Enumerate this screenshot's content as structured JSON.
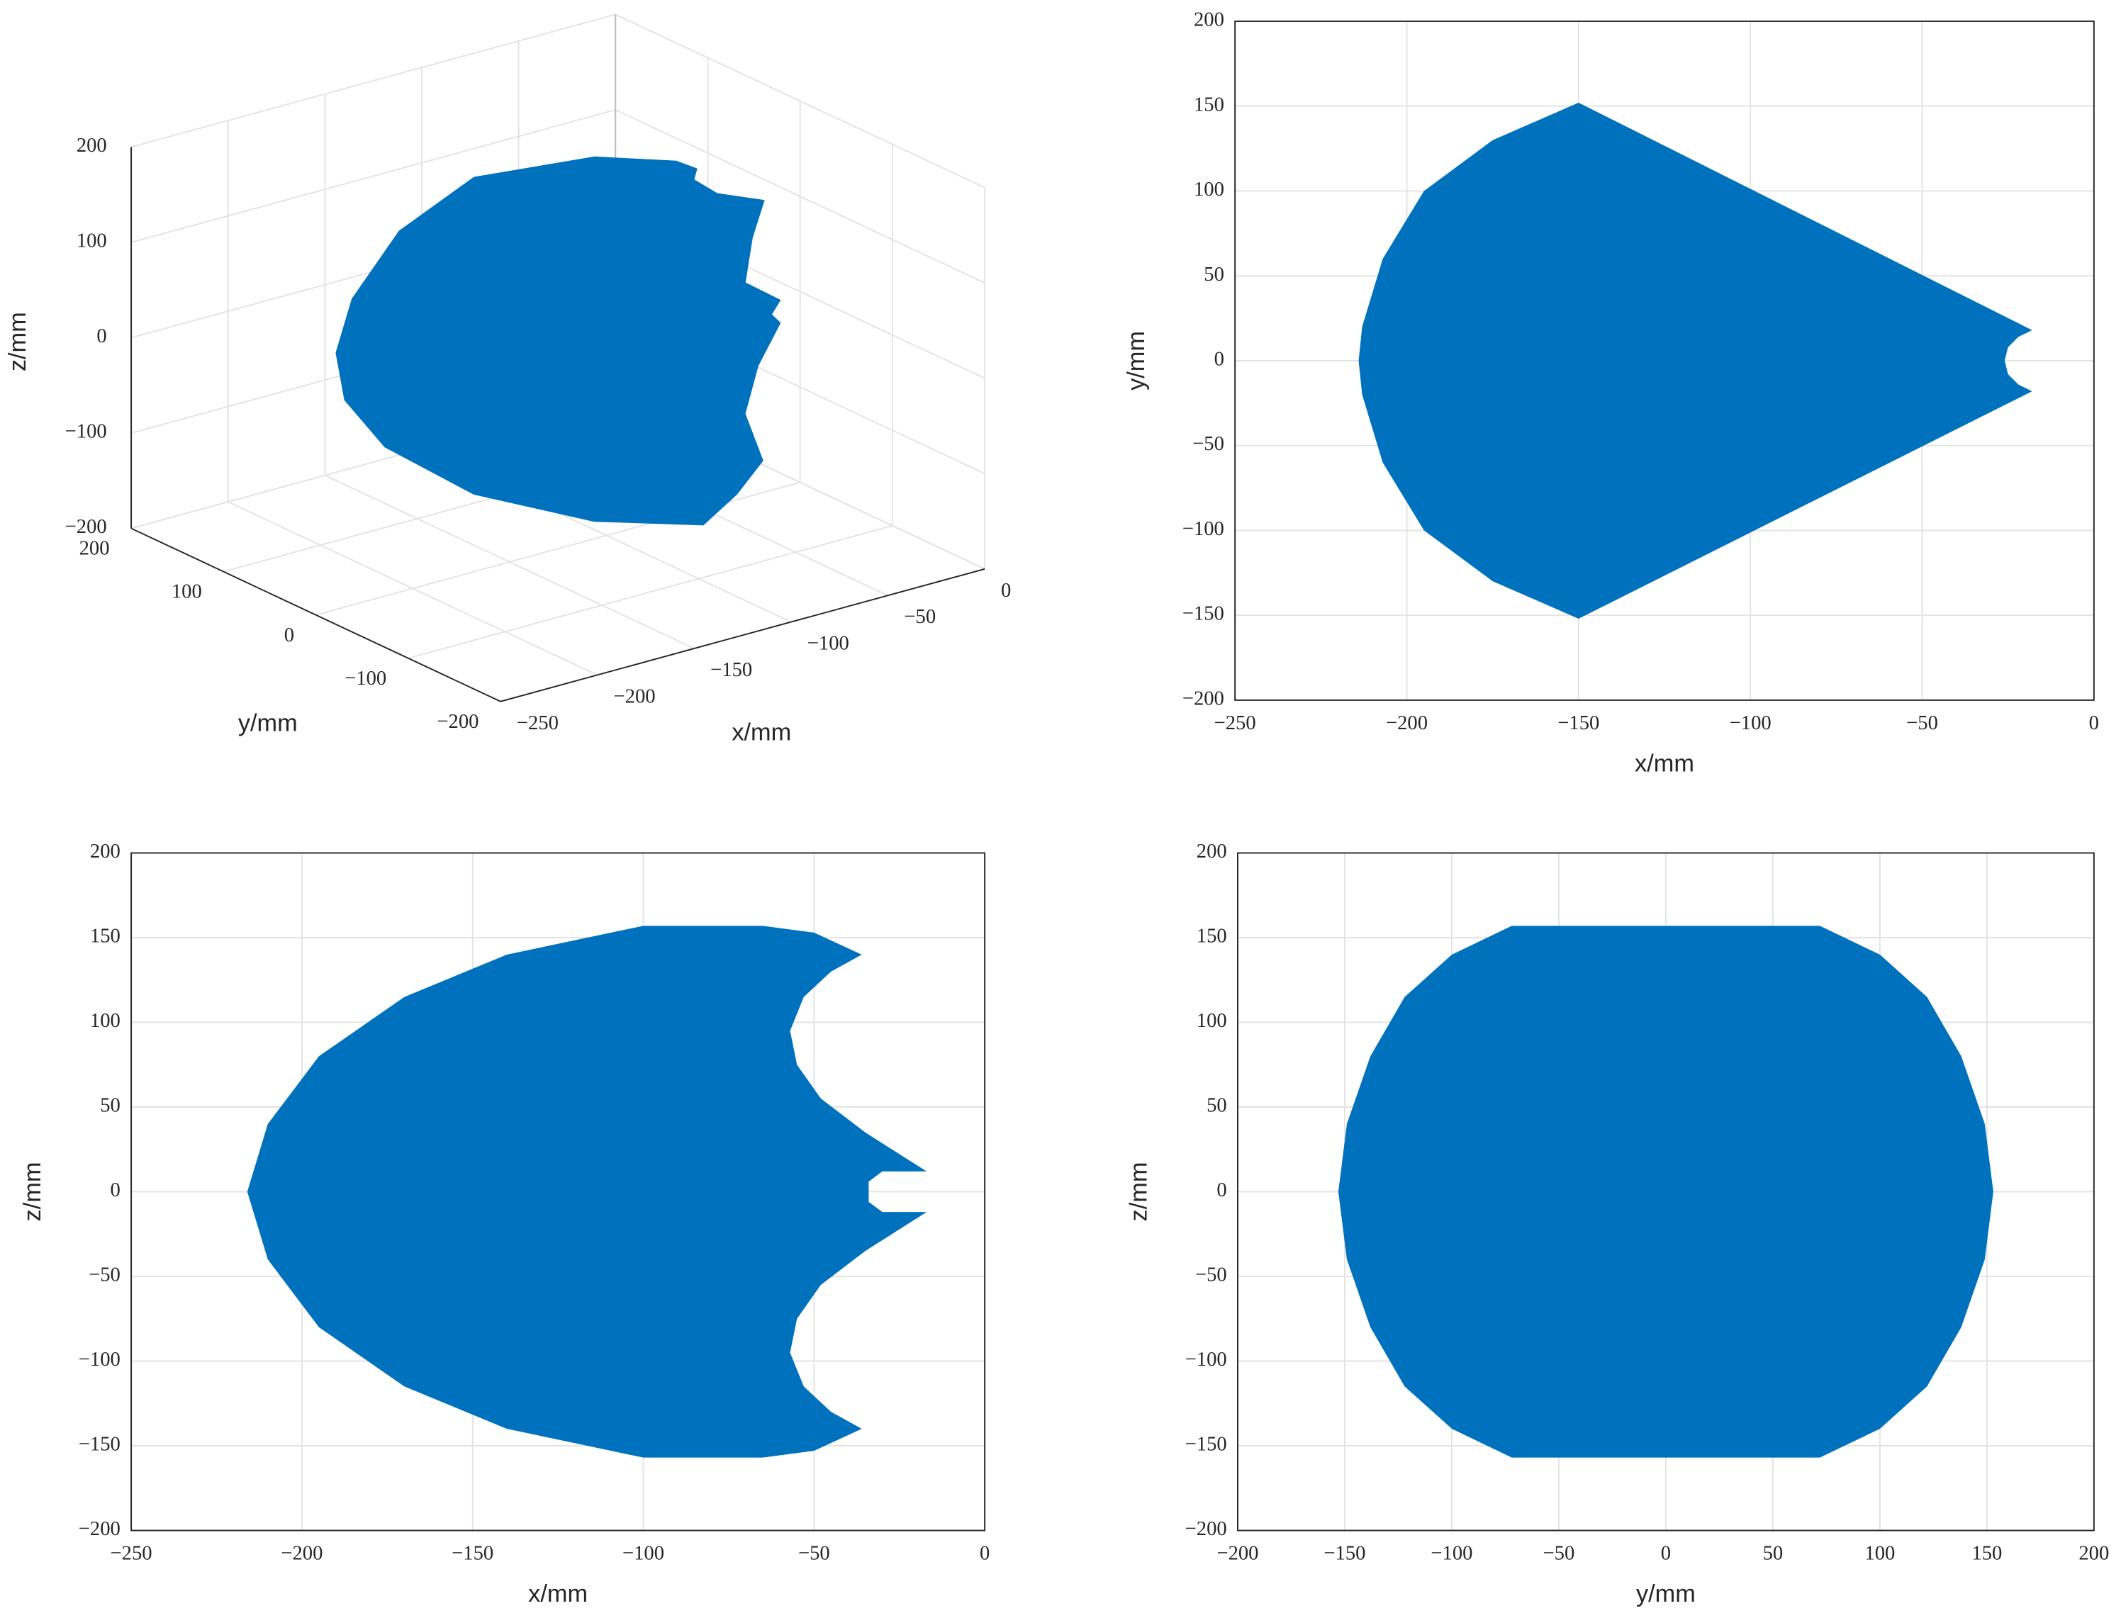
{
  "chart_data": [
    {
      "type": "area3d",
      "xlabel": "x/mm",
      "ylabel": "y/mm",
      "zlabel": "z/mm",
      "color": "#0072bd",
      "grid": true,
      "xlim": [
        -250,
        0
      ],
      "ylim": [
        -200,
        200
      ],
      "zlim": [
        -200,
        200
      ],
      "xticks": [
        {
          "value": -250,
          "label": "−250"
        },
        {
          "value": -200,
          "label": "−200"
        },
        {
          "value": -150,
          "label": "−150"
        },
        {
          "value": -100,
          "label": "−100"
        },
        {
          "value": -50,
          "label": "−50"
        },
        0
      ],
      "yticks": [
        {
          "value": -200,
          "label": "−200"
        },
        {
          "value": -100,
          "label": "−100"
        },
        0,
        100,
        200
      ],
      "zticks": [
        {
          "value": -200,
          "label": "−200"
        },
        {
          "value": -100,
          "label": "−100"
        },
        0,
        100,
        200
      ],
      "x": [
        -77,
        -52,
        -44,
        -36,
        -38,
        -34,
        -44,
        -51,
        -20,
        -25,
        -20,
        -32,
        -43,
        -40,
        -62,
        -90,
        -123,
        -148,
        -164,
        -171,
        -174,
        -171,
        -148,
        -116
      ],
      "y": [
        61,
        25,
        19,
        39,
        10,
        -33,
        -41,
        -48,
        -21,
        -22,
        -21,
        -22,
        -31,
        -44,
        -62,
        -84,
        -35,
        43,
        106,
        135,
        138,
        127,
        124,
        110
      ],
      "z": [
        157,
        155,
        145,
        120,
        120,
        130,
        100,
        60,
        12,
        0,
        -12,
        -50,
        -90,
        -135,
        -150,
        -157,
        -157,
        -150,
        -120,
        -80,
        -30,
        30,
        90,
        135
      ]
    },
    {
      "type": "area",
      "xlabel": "x/mm",
      "ylabel": "y/mm",
      "color": "#0072bd",
      "grid": true,
      "xlim": [
        -250,
        0
      ],
      "ylim": [
        -200,
        200
      ],
      "xticks": [
        {
          "value": -250,
          "label": "−250"
        },
        {
          "value": -200,
          "label": "−200"
        },
        {
          "value": -150,
          "label": "−150"
        },
        {
          "value": -100,
          "label": "−100"
        },
        {
          "value": -50,
          "label": "−50"
        },
        0
      ],
      "yticks": [
        {
          "value": -200,
          "label": "−200"
        },
        {
          "value": -150,
          "label": "−150"
        },
        {
          "value": -100,
          "label": "−100"
        },
        {
          "value": -50,
          "label": "−50"
        },
        0,
        50,
        100,
        150,
        200
      ],
      "x": [
        -150,
        -175,
        -195,
        -207,
        -213,
        -214,
        -213,
        -207,
        -195,
        -175,
        -150,
        -18,
        -22,
        -25,
        -26,
        -25,
        -22,
        -18
      ],
      "values": [
        152,
        130,
        100,
        60,
        20,
        0,
        -20,
        -60,
        -100,
        -130,
        -152,
        -18,
        -14,
        -8,
        0,
        8,
        14,
        18
      ]
    },
    {
      "type": "area",
      "xlabel": "x/mm",
      "ylabel": "z/mm",
      "color": "#0072bd",
      "grid": true,
      "xlim": [
        -250,
        0
      ],
      "ylim": [
        -200,
        200
      ],
      "xticks": [
        {
          "value": -250,
          "label": "−250"
        },
        {
          "value": -200,
          "label": "−200"
        },
        {
          "value": -150,
          "label": "−150"
        },
        {
          "value": -100,
          "label": "−100"
        },
        {
          "value": -50,
          "label": "−50"
        },
        0
      ],
      "yticks": [
        {
          "value": -200,
          "label": "−200"
        },
        {
          "value": -150,
          "label": "−150"
        },
        {
          "value": -100,
          "label": "−100"
        },
        {
          "value": -50,
          "label": "−50"
        },
        0,
        50,
        100,
        150,
        200
      ],
      "x": [
        -216,
        -210,
        -195,
        -170,
        -140,
        -100,
        -65,
        -50,
        -36,
        -45,
        -53,
        -57,
        -55,
        -48,
        -35,
        -17,
        -30,
        -34,
        -34,
        -30,
        -17,
        -35,
        -48,
        -55,
        -57,
        -53,
        -45,
        -36,
        -50,
        -65,
        -100,
        -140,
        -170,
        -195,
        -210
      ],
      "values": [
        0,
        40,
        80,
        115,
        140,
        157,
        157,
        153,
        140,
        130,
        115,
        95,
        75,
        55,
        35,
        12,
        12,
        6,
        -6,
        -12,
        -12,
        -35,
        -55,
        -75,
        -95,
        -115,
        -130,
        -140,
        -153,
        -157,
        -157,
        -140,
        -115,
        -80,
        -40
      ]
    },
    {
      "type": "area",
      "xlabel": "y/mm",
      "ylabel": "z/mm",
      "color": "#0072bd",
      "grid": true,
      "xlim": [
        -200,
        200
      ],
      "ylim": [
        -200,
        200
      ],
      "xticks": [
        {
          "value": -200,
          "label": "−200"
        },
        {
          "value": -150,
          "label": "−150"
        },
        {
          "value": -100,
          "label": "−100"
        },
        {
          "value": -50,
          "label": "−50"
        },
        0,
        50,
        100,
        150,
        200
      ],
      "yticks": [
        {
          "value": -200,
          "label": "−200"
        },
        {
          "value": -150,
          "label": "−150"
        },
        {
          "value": -100,
          "label": "−100"
        },
        {
          "value": -50,
          "label": "−50"
        },
        0,
        50,
        100,
        150,
        200
      ],
      "x": [
        -72,
        72,
        100,
        122,
        138,
        149,
        153,
        149,
        138,
        122,
        100,
        72,
        -72,
        -100,
        -122,
        -138,
        -149,
        -153,
        -149,
        -138,
        -122,
        -100
      ],
      "values": [
        157,
        157,
        140,
        115,
        80,
        40,
        0,
        -40,
        -80,
        -115,
        -140,
        -157,
        -157,
        -140,
        -115,
        -80,
        -40,
        0,
        40,
        80,
        115,
        140
      ]
    }
  ]
}
